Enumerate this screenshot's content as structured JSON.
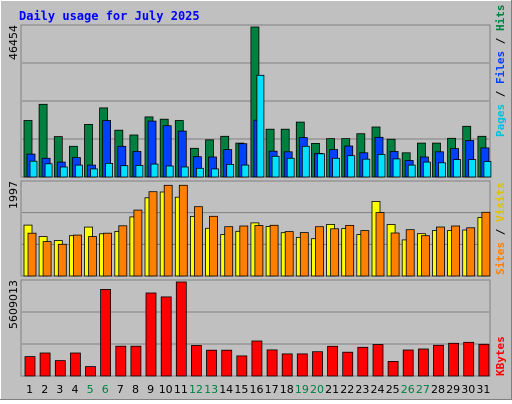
{
  "chart_data": {
    "type": "bar",
    "title": "Daily usage for July 2025",
    "categories": [
      "1",
      "2",
      "3",
      "4",
      "5",
      "6",
      "7",
      "8",
      "9",
      "10",
      "11",
      "12",
      "13",
      "14",
      "15",
      "16",
      "17",
      "18",
      "19",
      "20",
      "21",
      "22",
      "23",
      "24",
      "25",
      "26",
      "27",
      "28",
      "29",
      "30",
      "31"
    ],
    "weekend_days": [
      "5",
      "6",
      "12",
      "13",
      "19",
      "20",
      "26",
      "27"
    ],
    "panels": [
      {
        "id": "hits-files-pages",
        "ymax_label": "46454",
        "ymax": 46454,
        "series": [
          {
            "name": "Hits",
            "color": "#008040",
            "values": [
              17500,
              22500,
              12500,
              9500,
              16300,
              21400,
              14500,
              13000,
              18600,
              17900,
              17500,
              8900,
              11500,
              12600,
              10500,
              46454,
              14800,
              14800,
              17000,
              10400,
              11900,
              11900,
              13400,
              15500,
              11700,
              7500,
              10500,
              10500,
              12000,
              15700,
              12600
            ]
          },
          {
            "name": "Files",
            "color": "#0040FF",
            "values": [
              7100,
              5800,
              4600,
              6000,
              3700,
              17500,
              9500,
              7900,
              17300,
              15900,
              14200,
              6300,
              6200,
              8500,
              10300,
              17600,
              8000,
              7800,
              12200,
              7300,
              8500,
              9600,
              7500,
              12300,
              7900,
              5100,
              6200,
              7800,
              8800,
              11300,
              9000
            ]
          },
          {
            "name": "Pages",
            "color": "#00E0FF",
            "values": [
              4900,
              4100,
              3100,
              3700,
              2500,
              4200,
              3500,
              3600,
              4000,
              3400,
              3100,
              2700,
              2500,
              3900,
              3700,
              31500,
              6400,
              5800,
              9500,
              7200,
              5800,
              6600,
              5500,
              7000,
              5600,
              3700,
              4600,
              4400,
              5400,
              5400,
              4800
            ]
          }
        ]
      },
      {
        "id": "visits-sites",
        "ymax_label": "1997",
        "ymax": 1997,
        "series": [
          {
            "name": "Visits",
            "color": "#FFFF00",
            "values": [
              1094,
              847,
              760,
              866,
              1051,
              906,
              958,
              1270,
              1680,
              1803,
              1693,
              1279,
              1024,
              891,
              960,
              1140,
              1062,
              930,
              829,
              801,
              1108,
              1017,
              888,
              1600,
              1105,
              775,
              909,
              976,
              978,
              988,
              1255
            ]
          },
          {
            "name": "Sites",
            "color": "#FF8000",
            "values": [
              918,
              738,
              681,
              878,
              845,
              918,
              1079,
              1416,
              1810,
              1947,
              1948,
              1488,
              1283,
              1059,
              1073,
              1085,
              1088,
              953,
              932,
              1059,
              1014,
              1087,
              974,
              1361,
              924,
              995,
              866,
              1053,
              1073,
              1035,
              1367
            ]
          }
        ]
      },
      {
        "id": "kbytes",
        "ymax_label": "5609013",
        "ymax": 5609013,
        "series": [
          {
            "name": "KBytes",
            "color": "#FF0000",
            "values": [
              1160000,
              1370000,
              920000,
              1370000,
              560000,
              5170000,
              1780000,
              1780000,
              4950000,
              4720000,
              5609013,
              1820000,
              1540000,
              1540000,
              1200000,
              2090000,
              1560000,
              1320000,
              1320000,
              1450000,
              1770000,
              1420000,
              1710000,
              1880000,
              870000,
              1550000,
              1610000,
              1830000,
              1950000,
              2010000,
              1890000
            ]
          }
        ]
      }
    ],
    "legend_right": [
      {
        "text": "Pages",
        "color": "#00C0E0"
      },
      {
        "text": "Files",
        "color": "#0040FF"
      },
      {
        "text": "Hits",
        "color": "#008040"
      },
      {
        "text": "Sites",
        "color": "#FF8000"
      },
      {
        "text": "Visits",
        "color": "#E0C000"
      },
      {
        "text": "KBytes",
        "color": "#FF0000"
      }
    ],
    "grid": true,
    "legend_placement": "right"
  }
}
